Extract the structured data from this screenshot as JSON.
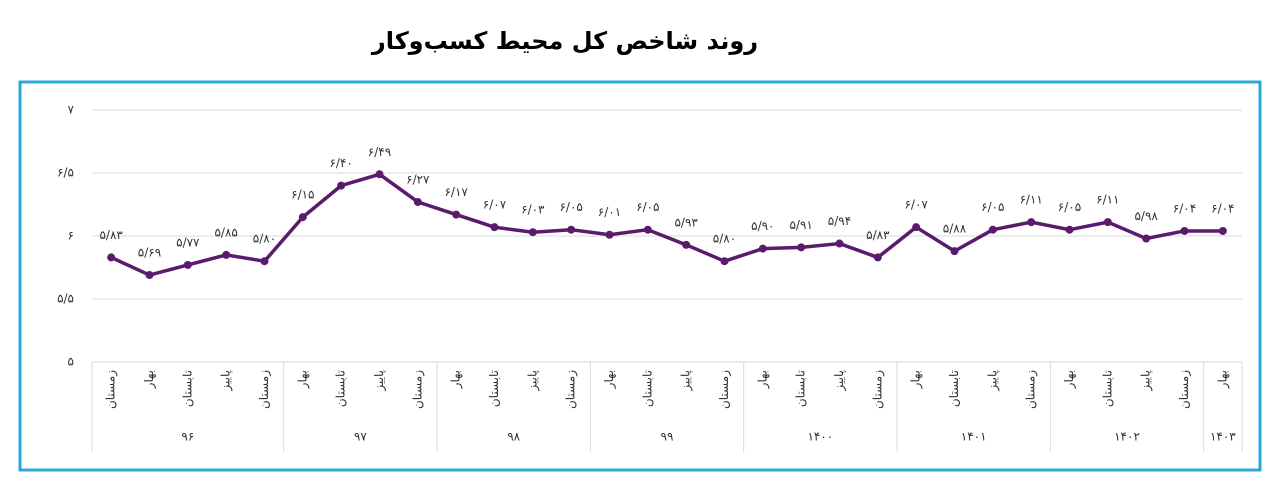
{
  "chart_data": {
    "type": "line",
    "title": "روند شاخص کل محیط کسب‌وکار",
    "groups": [
      {
        "label": "۹۶",
        "categories": [
          "زمستان",
          "بهار",
          "تابستان",
          "پاییز",
          "زمستان"
        ]
      },
      {
        "label": "۹۷",
        "categories": [
          "بهار",
          "تابستان",
          "پاییز",
          "زمستان"
        ]
      },
      {
        "label": "۹۸",
        "categories": [
          "بهار",
          "تابستان",
          "پاییز",
          "زمستان"
        ]
      },
      {
        "label": "۹۹",
        "categories": [
          "بهار",
          "تابستان",
          "پاییز",
          "زمستان"
        ]
      },
      {
        "label": "۱۴۰۰",
        "categories": [
          "بهار",
          "تابستان",
          "پاییز",
          "زمستان"
        ]
      },
      {
        "label": "۱۴۰۱",
        "categories": [
          "بهار",
          "تابستان",
          "پاییز",
          "زمستان"
        ]
      },
      {
        "label": "۱۴۰۲",
        "categories": [
          "بهار",
          "تابستان",
          "پاییز",
          "زمستان"
        ]
      },
      {
        "label": "۱۴۰۳",
        "categories": [
          "بهار"
        ]
      }
    ],
    "values": [
      5.83,
      5.69,
      5.77,
      5.85,
      5.8,
      6.15,
      6.4,
      6.49,
      6.27,
      6.17,
      6.07,
      6.03,
      6.05,
      6.01,
      6.05,
      5.93,
      5.8,
      5.9,
      5.91,
      5.94,
      5.83,
      6.07,
      5.88,
      6.05,
      6.11,
      6.05,
      6.11,
      5.98,
      6.04,
      6.04
    ],
    "value_labels": [
      "۵/۸۳",
      "۵/۶۹",
      "۵/۷۷",
      "۵/۸۵",
      "۵/۸۰",
      "۶/۱۵",
      "۶/۴۰",
      "۶/۴۹",
      "۶/۲۷",
      "۶/۱۷",
      "۶/۰۷",
      "۶/۰۳",
      "۶/۰۵",
      "۶/۰۱",
      "۶/۰۵",
      "۵/۹۳",
      "۵/۸۰",
      "۵/۹۰",
      "۵/۹۱",
      "۵/۹۴",
      "۵/۸۳",
      "۶/۰۷",
      "۵/۸۸",
      "۶/۰۵",
      "۶/۱۱",
      "۶/۰۵",
      "۶/۱۱",
      "۵/۹۸",
      "۶/۰۴",
      "۶/۰۴"
    ],
    "color": "#5b1a6b",
    "ylim": [
      5,
      7
    ],
    "yticks": [
      {
        "value": 5,
        "label": "۵"
      },
      {
        "value": 5.5,
        "label": "۵/۵"
      },
      {
        "value": 6,
        "label": "۶"
      },
      {
        "value": 6.5,
        "label": "۶/۵"
      },
      {
        "value": 7,
        "label": "۷"
      }
    ],
    "grid": true
  }
}
